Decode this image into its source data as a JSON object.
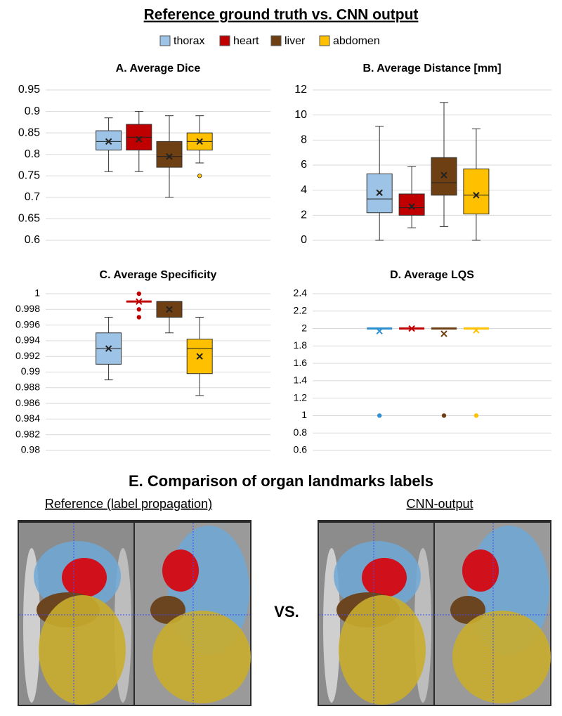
{
  "title": "Reference ground truth vs. CNN output",
  "legend": [
    {
      "name": "thorax",
      "color": "#9dc3e6"
    },
    {
      "name": "heart",
      "color": "#c00000"
    },
    {
      "name": "liver",
      "color": "#6e3f12"
    },
    {
      "name": "abdomen",
      "color": "#ffc000"
    }
  ],
  "chart_data": [
    {
      "type": "box",
      "title": "A. Average Dice",
      "ylim": [
        0.6,
        0.95
      ],
      "yticks": [
        0.6,
        0.65,
        0.7,
        0.75,
        0.8,
        0.85,
        0.9,
        0.95
      ],
      "grid": true,
      "series": [
        {
          "color": "#9dc3e6",
          "min": 0.76,
          "q1": 0.81,
          "median": 0.83,
          "q3": 0.855,
          "max": 0.885,
          "mean": 0.83,
          "outliers": []
        },
        {
          "color": "#c00000",
          "min": 0.76,
          "q1": 0.81,
          "median": 0.84,
          "q3": 0.87,
          "max": 0.9,
          "mean": 0.835,
          "outliers": []
        },
        {
          "color": "#6e3f12",
          "min": 0.7,
          "q1": 0.77,
          "median": 0.795,
          "q3": 0.83,
          "max": 0.89,
          "mean": 0.795,
          "outliers": []
        },
        {
          "color": "#ffc000",
          "min": 0.78,
          "q1": 0.81,
          "median": 0.83,
          "q3": 0.85,
          "max": 0.89,
          "mean": 0.83,
          "outliers": [
            0.75
          ]
        }
      ]
    },
    {
      "type": "box",
      "title": "B. Average Distance [mm]",
      "ylim": [
        0,
        12
      ],
      "yticks": [
        0,
        2,
        4,
        6,
        8,
        10,
        12
      ],
      "grid": true,
      "series": [
        {
          "color": "#9dc3e6",
          "min": 0,
          "q1": 2.2,
          "median": 3.3,
          "q3": 5.3,
          "max": 9.1,
          "mean": 3.8,
          "outliers": []
        },
        {
          "color": "#c00000",
          "min": 1,
          "q1": 2,
          "median": 2.6,
          "q3": 3.7,
          "max": 5.9,
          "mean": 2.7,
          "outliers": []
        },
        {
          "color": "#6e3f12",
          "min": 1.1,
          "q1": 3.6,
          "median": 4.6,
          "q3": 6.6,
          "max": 11,
          "mean": 5.2,
          "outliers": []
        },
        {
          "color": "#ffc000",
          "min": 0,
          "q1": 2.1,
          "median": 3.6,
          "q3": 5.7,
          "max": 8.9,
          "mean": 3.6,
          "outliers": []
        }
      ]
    },
    {
      "type": "box",
      "title": "C. Average Specificity",
      "ylim": [
        0.98,
        1
      ],
      "yticks": [
        0.98,
        0.982,
        0.984,
        0.986,
        0.988,
        0.99,
        0.992,
        0.994,
        0.996,
        0.998,
        1
      ],
      "grid": true,
      "series": [
        {
          "color": "#9dc3e6",
          "min": 0.989,
          "q1": 0.991,
          "median": 0.993,
          "q3": 0.995,
          "max": 0.997,
          "mean": 0.993,
          "outliers": []
        },
        {
          "color": "#c00000",
          "min": 0.999,
          "q1": 0.999,
          "median": 0.999,
          "q3": 0.999,
          "max": 0.999,
          "mean": 0.999,
          "outliers": [
            0.997,
            0.998,
            1
          ]
        },
        {
          "color": "#6e3f12",
          "min": 0.995,
          "q1": 0.997,
          "median": 0.999,
          "q3": 0.999,
          "max": 0.999,
          "mean": 0.998,
          "outliers": []
        },
        {
          "color": "#ffc000",
          "min": 0.987,
          "q1": 0.9898,
          "median": 0.993,
          "q3": 0.9942,
          "max": 0.997,
          "mean": 0.992,
          "outliers": []
        }
      ]
    },
    {
      "type": "box",
      "title": "D. Average LQS",
      "ylim": [
        0.6,
        2.4
      ],
      "yticks": [
        0.6,
        0.8,
        1,
        1.2,
        1.4,
        1.6,
        1.8,
        2,
        2.2,
        2.4
      ],
      "grid": true,
      "series": [
        {
          "color": "#2e90d0",
          "min": 2,
          "q1": 2,
          "median": 2,
          "q3": 2,
          "max": 2,
          "mean": 1.97,
          "outliers": [
            1
          ]
        },
        {
          "color": "#c00000",
          "min": 2,
          "q1": 2,
          "median": 2,
          "q3": 2,
          "max": 2,
          "mean": 2,
          "outliers": []
        },
        {
          "color": "#6e3f12",
          "min": 2,
          "q1": 2,
          "median": 2,
          "q3": 2,
          "max": 2,
          "mean": 1.94,
          "outliers": [
            1
          ]
        },
        {
          "color": "#ffc000",
          "min": 2,
          "q1": 2,
          "median": 2,
          "q3": 2,
          "max": 2,
          "mean": 1.98,
          "outliers": [
            1
          ]
        }
      ]
    }
  ],
  "section_e": {
    "title": "E. Comparison of organ landmarks labels",
    "panels": [
      {
        "caption": "Reference (label propagation)"
      },
      {
        "caption": "CNN-output"
      }
    ],
    "separator": "VS."
  }
}
